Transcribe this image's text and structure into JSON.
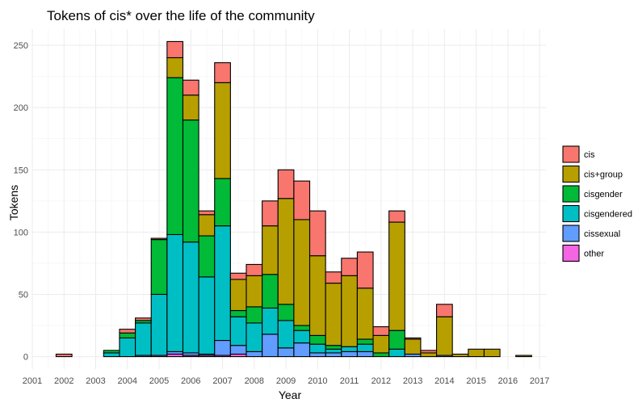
{
  "chart_data": {
    "type": "bar",
    "stacked": true,
    "title": "Tokens of cis* over the life of the community",
    "xlabel": "Year",
    "ylabel": "Tokens",
    "x_ticks": [
      "2001",
      "2002",
      "2003",
      "2004",
      "2005",
      "2006",
      "2007",
      "2008",
      "2009",
      "2010",
      "2011",
      "2012",
      "2013",
      "2014",
      "2015",
      "2016",
      "2017"
    ],
    "y_ticks": [
      "0",
      "50",
      "100",
      "150",
      "200",
      "250"
    ],
    "xlim": [
      2001,
      2017.2
    ],
    "ylim": [
      -10,
      263
    ],
    "bin_width": 0.5,
    "grid": true,
    "legend_position": "right",
    "series": [
      {
        "name": "other",
        "color": "#F564E3"
      },
      {
        "name": "cissexual",
        "color": "#619CFF"
      },
      {
        "name": "cisgendered",
        "color": "#00BFC4"
      },
      {
        "name": "cisgender",
        "color": "#00BA38"
      },
      {
        "name": "cis+group",
        "color": "#B79F00"
      },
      {
        "name": "cis",
        "color": "#F8766D"
      }
    ],
    "legend_order": [
      "cis",
      "cis+group",
      "cisgender",
      "cisgendered",
      "cissexual",
      "other"
    ],
    "bins": [
      {
        "x": 2002.0,
        "other": 0,
        "cissexual": 0,
        "cisgendered": 0,
        "cisgender": 0,
        "cis+group": 0,
        "cis": 2
      },
      {
        "x": 2003.5,
        "other": 0,
        "cissexual": 0,
        "cisgendered": 3,
        "cisgender": 2,
        "cis+group": 0,
        "cis": 0
      },
      {
        "x": 2004.0,
        "other": 0,
        "cissexual": 0,
        "cisgendered": 15,
        "cisgender": 4,
        "cis+group": 0,
        "cis": 3
      },
      {
        "x": 2004.5,
        "other": 0,
        "cissexual": 1,
        "cisgendered": 26,
        "cisgender": 2,
        "cis+group": 0,
        "cis": 2
      },
      {
        "x": 2005.0,
        "other": 1,
        "cissexual": 0,
        "cisgendered": 49,
        "cisgender": 44,
        "cis+group": 0,
        "cis": 1
      },
      {
        "x": 2005.5,
        "other": 2,
        "cissexual": 2,
        "cisgendered": 94,
        "cisgender": 126,
        "cis+group": 16,
        "cis": 13
      },
      {
        "x": 2006.0,
        "other": 1,
        "cissexual": 2,
        "cisgendered": 89,
        "cisgender": 98,
        "cis+group": 20,
        "cis": 12
      },
      {
        "x": 2006.5,
        "other": 1,
        "cissexual": 1,
        "cisgendered": 62,
        "cisgender": 33,
        "cis+group": 17,
        "cis": 3
      },
      {
        "x": 2007.0,
        "other": 1,
        "cissexual": 12,
        "cisgendered": 92,
        "cisgender": 38,
        "cis+group": 77,
        "cis": 16
      },
      {
        "x": 2007.5,
        "other": 2,
        "cissexual": 7,
        "cisgendered": 23,
        "cisgender": 5,
        "cis+group": 25,
        "cis": 5
      },
      {
        "x": 2008.0,
        "other": 0,
        "cissexual": 4,
        "cisgendered": 23,
        "cisgender": 13,
        "cis+group": 25,
        "cis": 9
      },
      {
        "x": 2008.5,
        "other": 0,
        "cissexual": 18,
        "cisgendered": 21,
        "cisgender": 27,
        "cis+group": 39,
        "cis": 20
      },
      {
        "x": 2009.0,
        "other": 0,
        "cissexual": 7,
        "cisgendered": 22,
        "cisgender": 13,
        "cis+group": 85,
        "cis": 23
      },
      {
        "x": 2009.5,
        "other": 0,
        "cissexual": 11,
        "cisgendered": 10,
        "cisgender": 4,
        "cis+group": 85,
        "cis": 31
      },
      {
        "x": 2010.0,
        "other": 0,
        "cissexual": 3,
        "cisgendered": 7,
        "cisgender": 7,
        "cis+group": 64,
        "cis": 36
      },
      {
        "x": 2010.5,
        "other": 0,
        "cissexual": 3,
        "cisgendered": 3,
        "cisgender": 3,
        "cis+group": 50,
        "cis": 9
      },
      {
        "x": 2011.0,
        "other": 0,
        "cissexual": 4,
        "cisgendered": 4,
        "cisgender": 0,
        "cis+group": 57,
        "cis": 14
      },
      {
        "x": 2011.5,
        "other": 0,
        "cissexual": 4,
        "cisgendered": 6,
        "cisgender": 4,
        "cis+group": 41,
        "cis": 29
      },
      {
        "x": 2012.0,
        "other": 0,
        "cissexual": 0,
        "cisgendered": 0,
        "cisgender": 3,
        "cis+group": 14,
        "cis": 7
      },
      {
        "x": 2012.5,
        "other": 0,
        "cissexual": 0,
        "cisgendered": 6,
        "cisgender": 15,
        "cis+group": 87,
        "cis": 9
      },
      {
        "x": 2013.0,
        "other": 0,
        "cissexual": 2,
        "cisgendered": 0,
        "cisgender": 0,
        "cis+group": 12,
        "cis": 1
      },
      {
        "x": 2013.5,
        "other": 0,
        "cissexual": 0,
        "cisgendered": 0,
        "cisgender": 0,
        "cis+group": 3,
        "cis": 2
      },
      {
        "x": 2014.0,
        "other": 0,
        "cissexual": 1,
        "cisgendered": 0,
        "cisgender": 0,
        "cis+group": 31,
        "cis": 10
      },
      {
        "x": 2014.5,
        "other": 0,
        "cissexual": 0,
        "cisgendered": 0,
        "cisgender": 0,
        "cis+group": 2,
        "cis": 0
      },
      {
        "x": 2015.0,
        "other": 0,
        "cissexual": 0,
        "cisgendered": 0,
        "cisgender": 0,
        "cis+group": 6,
        "cis": 0
      },
      {
        "x": 2015.5,
        "other": 0,
        "cissexual": 0,
        "cisgendered": 0,
        "cisgender": 0,
        "cis+group": 6,
        "cis": 0
      },
      {
        "x": 2016.5,
        "other": 0,
        "cissexual": 0,
        "cisgendered": 0,
        "cisgender": 0,
        "cis+group": 1,
        "cis": 0
      }
    ]
  }
}
